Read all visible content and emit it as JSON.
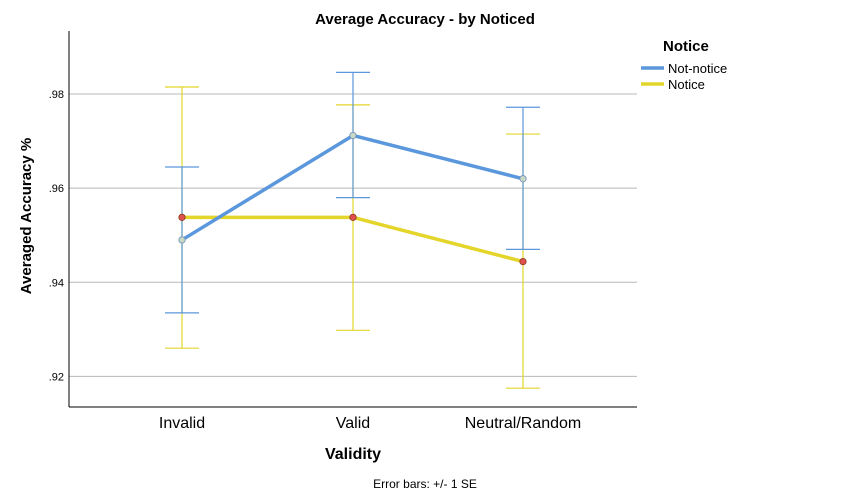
{
  "chart_data": {
    "type": "line",
    "title": "Average Accuracy - by Noticed",
    "xlabel": "Validity",
    "ylabel": "Averaged Accuracy %",
    "categories": [
      "Invalid",
      "Valid",
      "Neutral/Random"
    ],
    "ylim": [
      0.9135,
      0.9934
    ],
    "yticks": [
      0.92,
      0.94,
      0.96,
      0.98
    ],
    "ytick_labels": [
      ".92",
      ".94",
      ".96",
      ".98"
    ],
    "grid": true,
    "legend": {
      "title": "Notice",
      "position": "top-right"
    },
    "series": [
      {
        "name": "Not-notice",
        "color": "#5b97dc",
        "marker_fill": "#c9d8c4",
        "values": [
          0.949,
          0.9712,
          0.962
        ],
        "error_low": [
          0.9335,
          0.958,
          0.947
        ],
        "error_high": [
          0.9645,
          0.9846,
          0.9772
        ]
      },
      {
        "name": "Notice",
        "color": "#e3d52a",
        "marker_fill": "#e05050",
        "values": [
          0.9538,
          0.9538,
          0.9444
        ],
        "error_low": [
          0.926,
          0.9298,
          0.9175
        ],
        "error_high": [
          0.9815,
          0.9777,
          0.9715
        ]
      }
    ],
    "footnote": "Error bars: +/- 1 SE"
  }
}
